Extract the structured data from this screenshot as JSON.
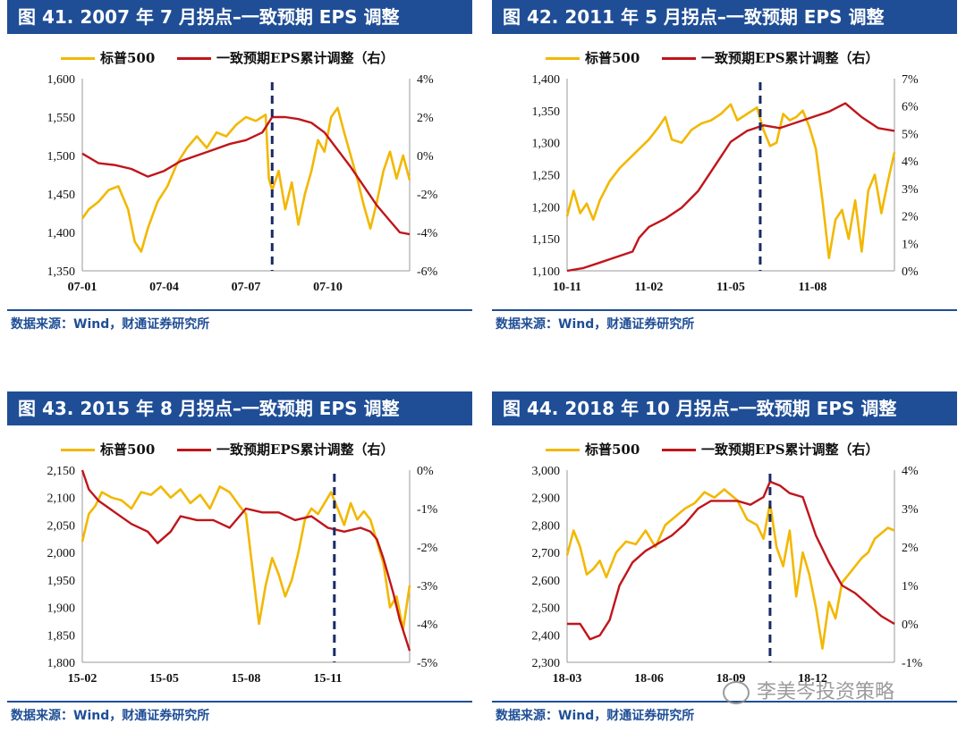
{
  "colors": {
    "title_bg": "#1f4e96",
    "sp": "#f2b800",
    "eps": "#c0151b",
    "marker": "#1a2a66"
  },
  "watermark": "李美岑投资策略",
  "charts": [
    {
      "title": "图 41. 2007 年 7 月拐点–一致预期 EPS 调整",
      "source": "数据来源：Wind，财通证券研究所",
      "legend": [
        "标普500",
        "一致预期EPS累计调整（右）"
      ],
      "chart_data": {
        "type": "line",
        "x_ticks": [
          "07-01",
          "07-04",
          "07-07",
          "07-10"
        ],
        "x_tick_pos": [
          0.0,
          0.25,
          0.5,
          0.75
        ],
        "y_left": {
          "min": 1350,
          "max": 1600,
          "ticks": [
            "1,350",
            "1,400",
            "1,450",
            "1,500",
            "1,550",
            "1,600"
          ]
        },
        "y_right": {
          "min": -6,
          "max": 4,
          "ticks": [
            "-6%",
            "-4%",
            "-2%",
            "0%",
            "2%",
            "4%"
          ]
        },
        "marker_x": 0.58,
        "series": [
          {
            "name": "标普500",
            "axis": "left",
            "x": [
              0,
              0.02,
              0.05,
              0.08,
              0.11,
              0.14,
              0.16,
              0.18,
              0.2,
              0.23,
              0.26,
              0.29,
              0.32,
              0.35,
              0.38,
              0.41,
              0.44,
              0.47,
              0.5,
              0.53,
              0.56,
              0.57,
              0.58,
              0.6,
              0.62,
              0.64,
              0.66,
              0.68,
              0.7,
              0.72,
              0.74,
              0.76,
              0.78,
              0.8,
              0.82,
              0.84,
              0.86,
              0.88,
              0.9,
              0.92,
              0.94,
              0.96,
              0.98,
              1.0
            ],
            "values": [
              1418,
              1430,
              1440,
              1455,
              1460,
              1430,
              1388,
              1375,
              1405,
              1440,
              1460,
              1490,
              1510,
              1525,
              1510,
              1530,
              1525,
              1540,
              1550,
              1545,
              1553,
              1470,
              1455,
              1480,
              1430,
              1465,
              1410,
              1450,
              1480,
              1520,
              1505,
              1550,
              1562,
              1530,
              1500,
              1470,
              1435,
              1405,
              1440,
              1480,
              1505,
              1470,
              1500,
              1468
            ]
          },
          {
            "name": "一致预期EPS累计调整（右）",
            "axis": "right",
            "x": [
              0,
              0.05,
              0.1,
              0.15,
              0.2,
              0.25,
              0.3,
              0.35,
              0.4,
              0.45,
              0.5,
              0.55,
              0.58,
              0.62,
              0.66,
              0.7,
              0.74,
              0.78,
              0.82,
              0.86,
              0.9,
              0.94,
              0.97,
              1.0
            ],
            "values": [
              0.1,
              -0.4,
              -0.5,
              -0.7,
              -1.1,
              -0.8,
              -0.3,
              0.0,
              0.3,
              0.6,
              0.8,
              1.2,
              2.0,
              2.0,
              1.9,
              1.7,
              1.2,
              0.3,
              -0.6,
              -1.6,
              -2.6,
              -3.4,
              -4.0,
              -4.1
            ]
          }
        ]
      }
    },
    {
      "title": "图 42. 2011 年 5 月拐点–一致预期 EPS 调整",
      "source": "数据来源：Wind，财通证券研究所",
      "legend": [
        "标普500",
        "一致预期EPS累计调整（右）"
      ],
      "chart_data": {
        "type": "line",
        "x_ticks": [
          "10-11",
          "11-02",
          "11-05",
          "11-08"
        ],
        "x_tick_pos": [
          0.0,
          0.25,
          0.5,
          0.75
        ],
        "y_left": {
          "min": 1100,
          "max": 1400,
          "ticks": [
            "1,100",
            "1,150",
            "1,200",
            "1,250",
            "1,300",
            "1,350",
            "1,400"
          ]
        },
        "y_right": {
          "min": 0,
          "max": 7,
          "ticks": [
            "0%",
            "1%",
            "2%",
            "3%",
            "4%",
            "5%",
            "6%",
            "7%"
          ]
        },
        "marker_x": 0.59,
        "series": [
          {
            "name": "标普500",
            "axis": "left",
            "x": [
              0,
              0.02,
              0.04,
              0.06,
              0.08,
              0.1,
              0.13,
              0.16,
              0.19,
              0.22,
              0.25,
              0.28,
              0.3,
              0.32,
              0.35,
              0.38,
              0.41,
              0.44,
              0.47,
              0.5,
              0.52,
              0.55,
              0.58,
              0.6,
              0.62,
              0.64,
              0.66,
              0.68,
              0.7,
              0.72,
              0.74,
              0.76,
              0.78,
              0.8,
              0.82,
              0.84,
              0.86,
              0.88,
              0.9,
              0.92,
              0.94,
              0.96,
              0.98,
              1.0
            ],
            "values": [
              1185,
              1225,
              1190,
              1205,
              1180,
              1210,
              1240,
              1260,
              1275,
              1290,
              1305,
              1325,
              1340,
              1305,
              1300,
              1320,
              1330,
              1335,
              1345,
              1360,
              1335,
              1345,
              1355,
              1320,
              1295,
              1300,
              1345,
              1335,
              1340,
              1350,
              1325,
              1290,
              1210,
              1120,
              1180,
              1195,
              1150,
              1210,
              1130,
              1225,
              1250,
              1190,
              1240,
              1285
            ]
          },
          {
            "name": "一致预期EPS累计调整（右）",
            "axis": "right",
            "x": [
              0,
              0.05,
              0.1,
              0.15,
              0.2,
              0.22,
              0.25,
              0.3,
              0.35,
              0.4,
              0.45,
              0.5,
              0.55,
              0.6,
              0.65,
              0.7,
              0.75,
              0.8,
              0.85,
              0.9,
              0.95,
              1.0
            ],
            "values": [
              0.0,
              0.1,
              0.3,
              0.5,
              0.7,
              1.2,
              1.6,
              1.9,
              2.3,
              2.9,
              3.8,
              4.7,
              5.1,
              5.3,
              5.2,
              5.4,
              5.6,
              5.8,
              6.1,
              5.6,
              5.2,
              5.1
            ]
          }
        ]
      }
    },
    {
      "title": "图 43. 2015 年 8 月拐点–一致预期 EPS 调整",
      "source": "数据来源：Wind，财通证券研究所",
      "legend": [
        "标普500",
        "一致预期EPS累计调整（右）"
      ],
      "chart_data": {
        "type": "line",
        "x_ticks": [
          "15-02",
          "15-05",
          "15-08",
          "15-11"
        ],
        "x_tick_pos": [
          0.0,
          0.25,
          0.5,
          0.75
        ],
        "y_left": {
          "min": 1800,
          "max": 2150,
          "ticks": [
            "1,800",
            "1,850",
            "1,900",
            "1,950",
            "2,000",
            "2,050",
            "2,100",
            "2,150"
          ]
        },
        "y_right": {
          "min": -5,
          "max": 0,
          "ticks": [
            "-5%",
            "-4%",
            "-3%",
            "-2%",
            "-1%",
            "0%"
          ]
        },
        "marker_x": 0.77,
        "series": [
          {
            "name": "标普500",
            "axis": "left",
            "x": [
              0,
              0.02,
              0.04,
              0.06,
              0.09,
              0.12,
              0.15,
              0.18,
              0.21,
              0.24,
              0.27,
              0.3,
              0.33,
              0.36,
              0.39,
              0.42,
              0.45,
              0.48,
              0.5,
              0.52,
              0.54,
              0.56,
              0.58,
              0.6,
              0.62,
              0.64,
              0.66,
              0.68,
              0.7,
              0.72,
              0.74,
              0.76,
              0.78,
              0.8,
              0.82,
              0.84,
              0.86,
              0.88,
              0.9,
              0.92,
              0.94,
              0.96,
              0.98,
              1.0
            ],
            "values": [
              2020,
              2070,
              2085,
              2110,
              2100,
              2095,
              2080,
              2110,
              2105,
              2120,
              2100,
              2115,
              2090,
              2105,
              2080,
              2120,
              2110,
              2085,
              2070,
              1970,
              1870,
              1940,
              1990,
              1960,
              1920,
              1950,
              2000,
              2060,
              2080,
              2070,
              2090,
              2110,
              2080,
              2050,
              2090,
              2060,
              2075,
              2060,
              2020,
              1980,
              1900,
              1920,
              1860,
              1940
            ]
          },
          {
            "name": "一致预期EPS累计调整（右）",
            "axis": "right",
            "x": [
              0,
              0.02,
              0.05,
              0.1,
              0.15,
              0.2,
              0.23,
              0.27,
              0.3,
              0.35,
              0.4,
              0.45,
              0.5,
              0.55,
              0.6,
              0.65,
              0.7,
              0.75,
              0.8,
              0.85,
              0.88,
              0.9,
              0.92,
              0.95,
              0.97,
              1.0
            ],
            "values": [
              0.0,
              -0.5,
              -0.8,
              -1.1,
              -1.4,
              -1.6,
              -1.9,
              -1.6,
              -1.2,
              -1.3,
              -1.3,
              -1.5,
              -1.0,
              -1.1,
              -1.1,
              -1.3,
              -1.2,
              -1.5,
              -1.6,
              -1.5,
              -1.6,
              -1.8,
              -2.3,
              -3.2,
              -3.9,
              -4.7
            ]
          }
        ]
      }
    },
    {
      "title": "图 44. 2018 年 10 月拐点–一致预期 EPS 调整",
      "source": "数据来源：Wind，财通证券研究所",
      "legend": [
        "标普500",
        "一致预期EPS累计调整（右）"
      ],
      "chart_data": {
        "type": "line",
        "x_ticks": [
          "18-03",
          "18-06",
          "18-09",
          "18-12"
        ],
        "x_tick_pos": [
          0.0,
          0.25,
          0.5,
          0.75
        ],
        "y_left": {
          "min": 2300,
          "max": 3000,
          "ticks": [
            "2,300",
            "2,400",
            "2,500",
            "2,600",
            "2,700",
            "2,800",
            "2,900",
            "3,000"
          ]
        },
        "y_right": {
          "min": -1,
          "max": 4,
          "ticks": [
            "-1%",
            "0%",
            "1%",
            "2%",
            "3%",
            "4%"
          ]
        },
        "marker_x": 0.62,
        "series": [
          {
            "name": "标普500",
            "axis": "left",
            "x": [
              0,
              0.02,
              0.04,
              0.06,
              0.08,
              0.1,
              0.12,
              0.15,
              0.18,
              0.21,
              0.24,
              0.27,
              0.3,
              0.33,
              0.36,
              0.39,
              0.42,
              0.45,
              0.48,
              0.5,
              0.52,
              0.55,
              0.58,
              0.6,
              0.62,
              0.64,
              0.66,
              0.68,
              0.7,
              0.72,
              0.74,
              0.76,
              0.78,
              0.8,
              0.82,
              0.84,
              0.86,
              0.88,
              0.9,
              0.92,
              0.94,
              0.96,
              0.98,
              1.0
            ],
            "values": [
              2690,
              2780,
              2720,
              2620,
              2640,
              2670,
              2610,
              2700,
              2740,
              2730,
              2780,
              2720,
              2800,
              2830,
              2860,
              2880,
              2920,
              2900,
              2930,
              2910,
              2890,
              2820,
              2800,
              2750,
              2880,
              2720,
              2650,
              2780,
              2540,
              2700,
              2620,
              2500,
              2350,
              2520,
              2460,
              2590,
              2620,
              2650,
              2680,
              2700,
              2750,
              2770,
              2790,
              2780
            ]
          },
          {
            "name": "一致预期EPS累计调整（右）",
            "axis": "right",
            "x": [
              0,
              0.04,
              0.07,
              0.1,
              0.13,
              0.16,
              0.2,
              0.24,
              0.28,
              0.32,
              0.36,
              0.4,
              0.44,
              0.48,
              0.52,
              0.56,
              0.6,
              0.62,
              0.65,
              0.68,
              0.72,
              0.76,
              0.8,
              0.84,
              0.88,
              0.92,
              0.96,
              1.0
            ],
            "values": [
              0.0,
              0.0,
              -0.4,
              -0.3,
              0.1,
              1.0,
              1.6,
              1.9,
              2.1,
              2.3,
              2.6,
              3.0,
              3.2,
              3.2,
              3.2,
              3.1,
              3.3,
              3.7,
              3.6,
              3.4,
              3.3,
              2.3,
              1.6,
              1.0,
              0.8,
              0.5,
              0.2,
              0.0
            ]
          }
        ]
      }
    }
  ]
}
